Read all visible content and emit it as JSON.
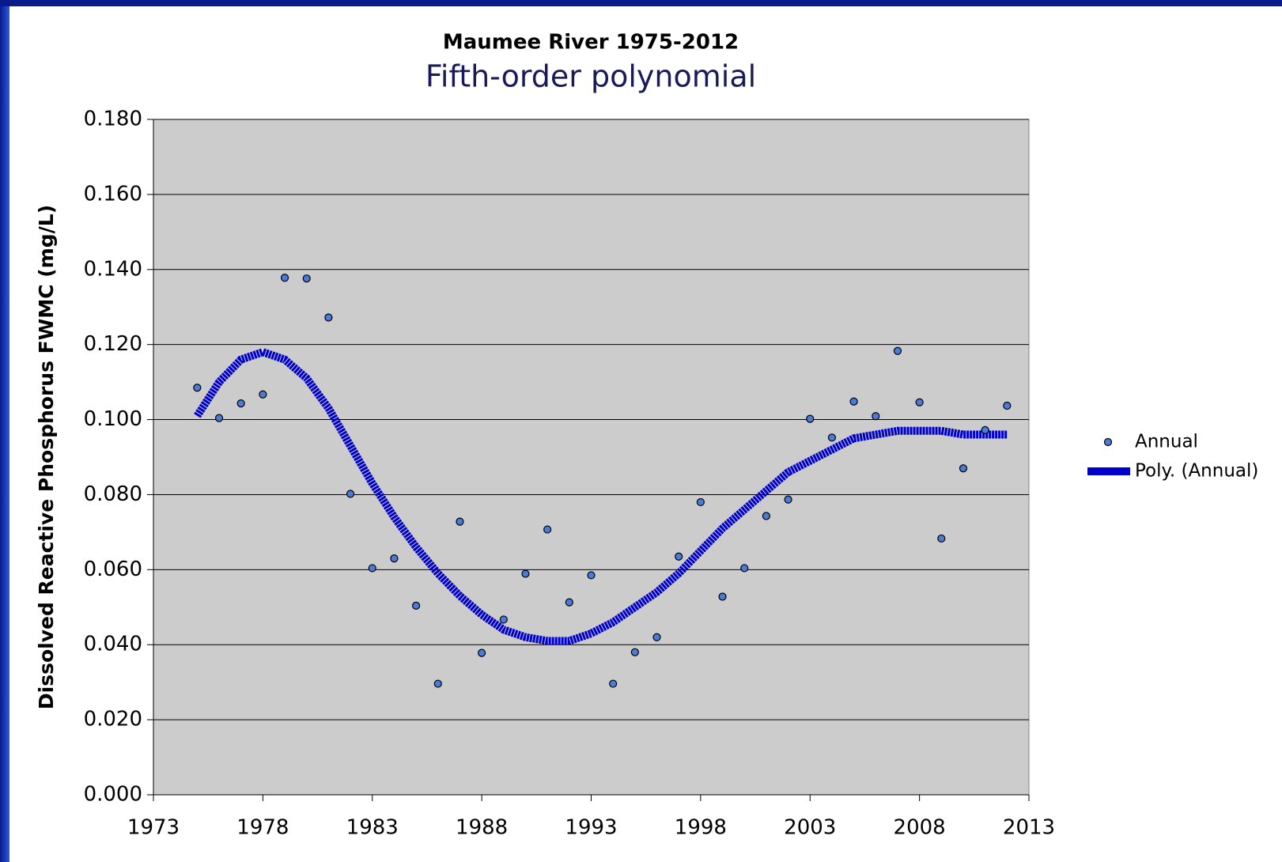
{
  "chart_data": {
    "type": "scatter",
    "title": "Maumee River 1975-2012",
    "subtitle": "Fifth-order polynomial",
    "ylabel": "Dissolved Reactive Phosphorus FWMC (mg/L)",
    "x": [
      1975,
      1976,
      1977,
      1978,
      1979,
      1980,
      1981,
      1982,
      1983,
      1984,
      1985,
      1986,
      1987,
      1988,
      1989,
      1990,
      1991,
      1992,
      1993,
      1994,
      1995,
      1996,
      1997,
      1998,
      1999,
      2000,
      2001,
      2002,
      2003,
      2004,
      2005,
      2006,
      2007,
      2008,
      2009,
      2010,
      2011,
      2012
    ],
    "series": [
      {
        "name": "Annual",
        "color": "#4a7bd8",
        "mode": "markers",
        "values": [
          0.1085,
          0.1004,
          0.1043,
          0.1067,
          0.1378,
          0.1376,
          0.1272,
          0.0802,
          0.0604,
          0.063,
          0.0504,
          0.0296,
          0.0728,
          0.0378,
          0.0467,
          0.0589,
          0.0707,
          0.0513,
          0.0585,
          0.0296,
          0.038,
          0.042,
          0.0635,
          0.078,
          0.0528,
          0.0604,
          0.0743,
          0.0787,
          0.1002,
          0.0952,
          0.1048,
          0.1009,
          0.1183,
          0.1046,
          0.0683,
          0.087,
          0.0972,
          0.1037
        ]
      },
      {
        "name": "Poly. (Annual)",
        "color": "#0000cc",
        "mode": "line",
        "values": [
          0.101,
          0.11,
          0.116,
          0.118,
          0.116,
          0.111,
          0.103,
          0.093,
          0.083,
          0.074,
          0.066,
          0.059,
          0.053,
          0.048,
          0.044,
          0.042,
          0.041,
          0.041,
          0.043,
          0.046,
          0.05,
          0.054,
          0.059,
          0.065,
          0.071,
          0.076,
          0.081,
          0.086,
          0.089,
          0.092,
          0.095,
          0.096,
          0.097,
          0.097,
          0.097,
          0.096,
          0.096,
          0.096
        ]
      }
    ],
    "xlim": [
      1973,
      2013
    ],
    "xticks": [
      1973,
      1978,
      1983,
      1988,
      1993,
      1998,
      2003,
      2008,
      2013
    ],
    "ylim": [
      0,
      0.18
    ],
    "yticks": [
      {
        "value": 0,
        "label": "0.000"
      },
      {
        "value": 0.02,
        "label": "0.020"
      },
      {
        "value": 0.04,
        "label": "0.040"
      },
      {
        "value": 0.06,
        "label": "0.060"
      },
      {
        "value": 0.08,
        "label": "0.080"
      },
      {
        "value": 0.1,
        "label": "0.100"
      },
      {
        "value": 0.12,
        "label": "0.120"
      },
      {
        "value": 0.14,
        "label": "0.140"
      },
      {
        "value": 0.16,
        "label": "0.160"
      },
      {
        "value": 0.18,
        "label": "0.180"
      }
    ],
    "grid": true,
    "legend": "right"
  }
}
